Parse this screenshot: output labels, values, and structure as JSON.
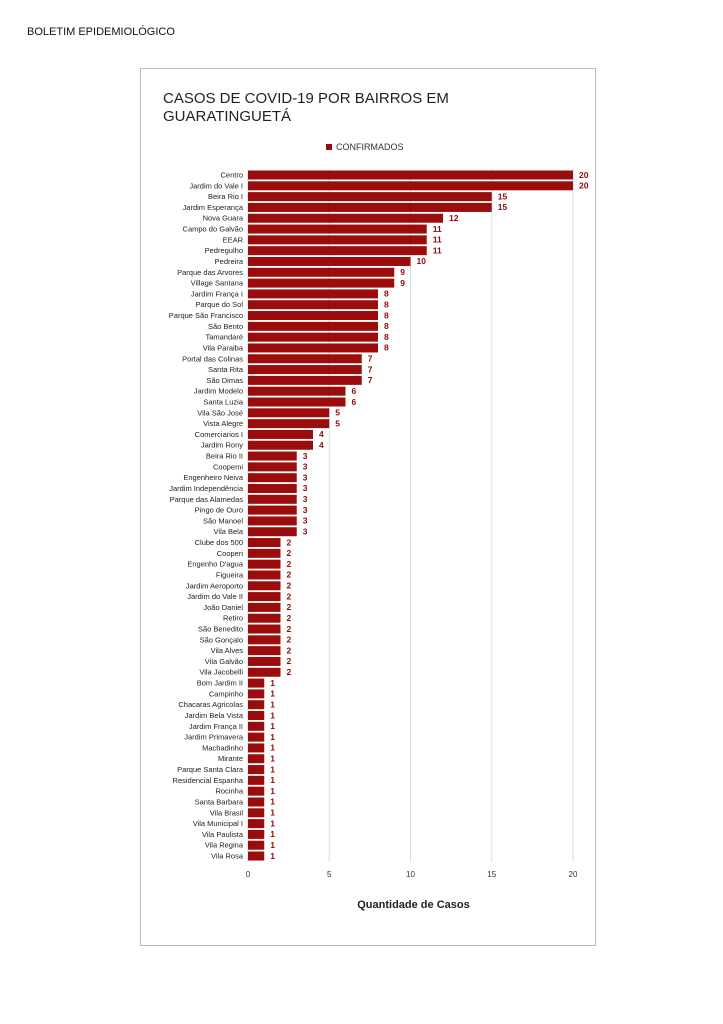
{
  "header": "BOLETIM EPIDEMIOLÓGICO",
  "chart_data": {
    "type": "bar",
    "orientation": "horizontal",
    "title": "CASOS DE COVID-19 POR BAIRROS EM GUARATINGUETÁ",
    "xlabel": "Quantidade de Casos",
    "categories": [
      "Centro",
      "Jardim do Vale I",
      "Beira Rio I",
      "Jardim Esperança",
      "Nova Guara",
      "Campo do Galvão",
      "EEAR",
      "Pedregulho",
      "Pedreira",
      "Parque das Arvores",
      "Village Santana",
      "Jardim França I",
      "Parque do Sol",
      "Parque São Francisco",
      "São Bento",
      "Tamandaré",
      "Vila Paraiba",
      "Portal das Colinas",
      "Santa Rita",
      "São Dimas",
      "Jardim Modelo",
      "Santa Luzia",
      "Vila São José",
      "Vista Alegre",
      "Comerciarios I",
      "Jardim Rony",
      "Beira Rio II",
      "Coopemi",
      "Engenheiro Neiva",
      "Jardim Independência",
      "Parque das Alamedas",
      "Pingo de Ouro",
      "São Manoel",
      "Vila Bela",
      "Clube dos 500",
      "Cooperi",
      "Engenho D'agua",
      "Figueira",
      "Jardim Aeroporto",
      "Jardim do Vale II",
      "João Daniel",
      "Retiro",
      "São Benedito",
      "São Gonçalo",
      "Vila Alves",
      "Vila Galvão",
      "Vila Jacobelli",
      "Bom Jardim II",
      "Campinho",
      "Chacaras Agricolas",
      "Jardim Bela Vista",
      "Jardim França II",
      "Jardim Primavera",
      "Machadinho",
      "Mirante",
      "Parque Santa Clara",
      "Residencial Espanha",
      "Rocinha",
      "Santa Barbara",
      "Vila Brasil",
      "Vila Municipal I",
      "Vila Paulista",
      "Vila Regina",
      "Vila Rosa"
    ],
    "series": [
      {
        "name": "CONFIRMADOS",
        "color": "#9b0d0d",
        "values": [
          20,
          20,
          15,
          15,
          12,
          11,
          11,
          11,
          10,
          9,
          9,
          8,
          8,
          8,
          8,
          8,
          8,
          7,
          7,
          7,
          6,
          6,
          5,
          5,
          4,
          4,
          3,
          3,
          3,
          3,
          3,
          3,
          3,
          3,
          2,
          2,
          2,
          2,
          2,
          2,
          2,
          2,
          2,
          2,
          2,
          2,
          2,
          1,
          1,
          1,
          1,
          1,
          1,
          1,
          1,
          1,
          1,
          1,
          1,
          1,
          1,
          1,
          1,
          1
        ]
      }
    ],
    "xlim": [
      0,
      20
    ],
    "xticks": [
      0,
      5,
      10,
      15,
      20
    ],
    "grid": true,
    "legend": "top"
  }
}
